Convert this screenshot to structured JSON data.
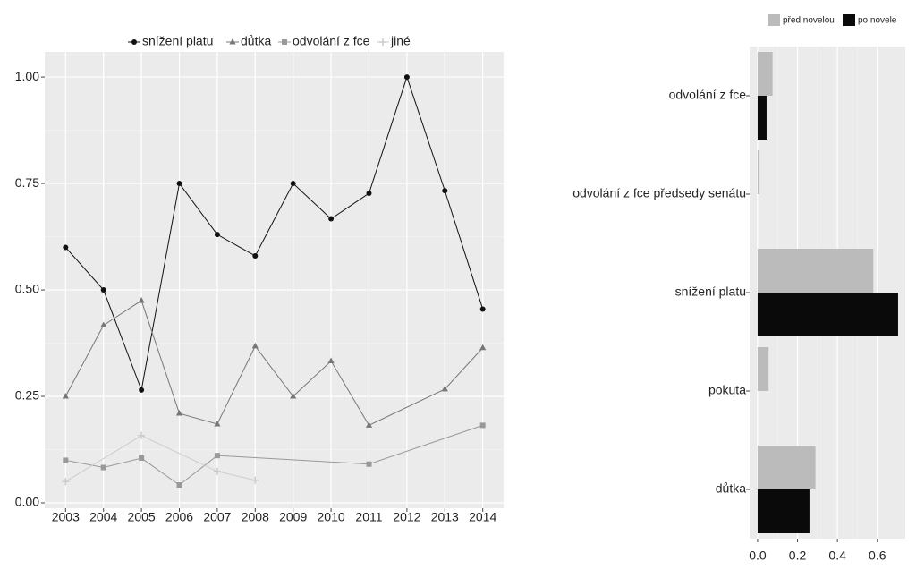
{
  "chart_data": [
    {
      "type": "line",
      "xticks": [
        2003,
        2004,
        2005,
        2006,
        2007,
        2008,
        2009,
        2010,
        2011,
        2012,
        2013,
        2014
      ],
      "xlim": [
        2002.45,
        2014.55
      ],
      "ylim": [
        -0.0126,
        1.059
      ],
      "yticks": [
        {
          "value": 0,
          "label": "0.00"
        },
        {
          "value": 0.25,
          "label": "0.25"
        },
        {
          "value": 0.5,
          "label": "0.50"
        },
        {
          "value": 0.75,
          "label": "0.75"
        },
        {
          "value": 1,
          "label": "1.00"
        }
      ],
      "grid": true,
      "legend": "top",
      "series": [
        {
          "name": "snížení platu",
          "color": "#111111",
          "marker": "circle",
          "x": [
            2003,
            2004,
            2005,
            2006,
            2007,
            2008,
            2009,
            2010,
            2011,
            2012,
            2013,
            2014
          ],
          "values": [
            0.6,
            0.5,
            0.265,
            0.75,
            0.63,
            0.58,
            0.75,
            0.667,
            0.727,
            1.0,
            0.733,
            0.455
          ]
        },
        {
          "name": "důtka",
          "color": "#777777",
          "marker": "triangle",
          "x": [
            2003,
            2004,
            2005,
            2006,
            2007,
            2008,
            2009,
            2010,
            2011,
            2013,
            2014
          ],
          "values": [
            0.25,
            0.417,
            0.475,
            0.21,
            0.185,
            0.368,
            0.25,
            0.333,
            0.182,
            0.267,
            0.364
          ]
        },
        {
          "name": "odvolání z fce",
          "color": "#999999",
          "marker": "square",
          "x": [
            2003,
            2004,
            2005,
            2006,
            2007,
            2011,
            2014
          ],
          "values": [
            0.1,
            0.083,
            0.105,
            0.042,
            0.111,
            0.091,
            0.182
          ]
        },
        {
          "name": "jiné",
          "color": "#cccccc",
          "marker": "cross",
          "x": [
            2003,
            2005,
            2007,
            2008
          ],
          "values": [
            0.05,
            0.158,
            0.074,
            0.053
          ]
        }
      ]
    },
    {
      "type": "bar",
      "orientation": "horizontal",
      "categories": [
        "odvolání z fce",
        "odvolání z fce předsedy senátu",
        "snížení platu",
        "pokuta",
        "důtka"
      ],
      "xlim": [
        -0.04,
        0.74
      ],
      "xticks": [
        {
          "value": 0,
          "label": "0.0"
        },
        {
          "value": 0.2,
          "label": "0.2"
        },
        {
          "value": 0.4,
          "label": "0.4"
        },
        {
          "value": 0.6,
          "label": "0.6"
        }
      ],
      "grid": true,
      "legend": "top",
      "series": [
        {
          "name": "před novelou",
          "color": "#bbbbbb",
          "values": [
            0.075,
            0.01,
            0.58,
            0.055,
            0.29
          ]
        },
        {
          "name": "po novele",
          "color": "#0a0a0a",
          "values": [
            0.045,
            null,
            0.704,
            null,
            0.26
          ]
        }
      ]
    }
  ]
}
